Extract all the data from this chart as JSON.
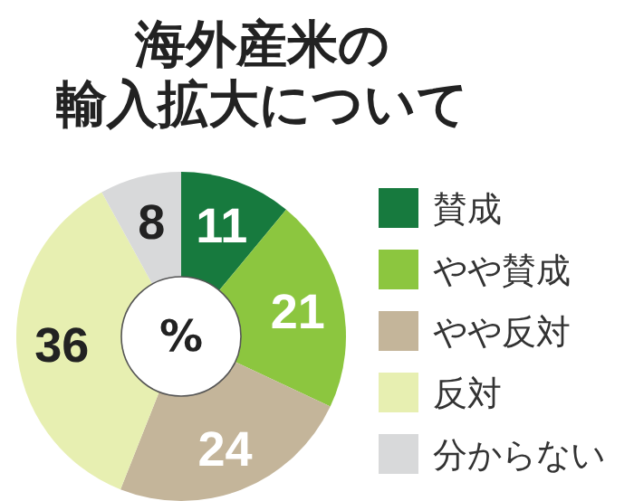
{
  "chart_data": {
    "type": "donut",
    "title": "海外産米の輸入拡大について",
    "categories": [
      "賛成",
      "やや賛成",
      "やや反対",
      "反対",
      "分からない"
    ],
    "values": [
      11,
      21,
      24,
      36,
      8
    ],
    "colors": [
      "#177a3e",
      "#8cc63f",
      "#c4b59a",
      "#e7efb1",
      "#d8d9da"
    ],
    "data_labels": true,
    "legend": "right",
    "annotations": [
      "%"
    ]
  }
}
